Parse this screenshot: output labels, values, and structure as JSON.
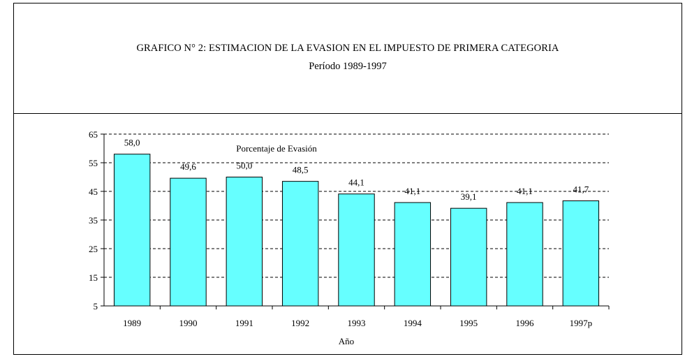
{
  "chart_data": {
    "type": "bar",
    "title": "GRAFICO N° 2: ESTIMACION DE LA EVASION EN EL IMPUESTO DE PRIMERA CATEGORIA",
    "subtitle": "Período 1989-1997",
    "xlabel": "Año",
    "ylabel": "",
    "categories": [
      "1989",
      "1990",
      "1991",
      "1992",
      "1993",
      "1994",
      "1995",
      "1996",
      "1997p"
    ],
    "series": [
      {
        "name": "Porcentaje de Evasión",
        "values": [
          58.0,
          49.6,
          50.0,
          48.5,
          44.1,
          41.1,
          39.1,
          41.1,
          41.7
        ],
        "labels": [
          "58,0",
          "49,6",
          "50,0",
          "48,5",
          "44,1",
          "41,1",
          "39,1",
          "41,1",
          "41,7"
        ]
      }
    ],
    "ylim": [
      5,
      65
    ],
    "yticks": [
      5,
      15,
      25,
      35,
      45,
      55,
      65
    ],
    "grid": "dashed horizontal",
    "legend": "top-center",
    "colors": {
      "bar_fill": "#66ffff",
      "bar_stroke": "#000000"
    }
  }
}
